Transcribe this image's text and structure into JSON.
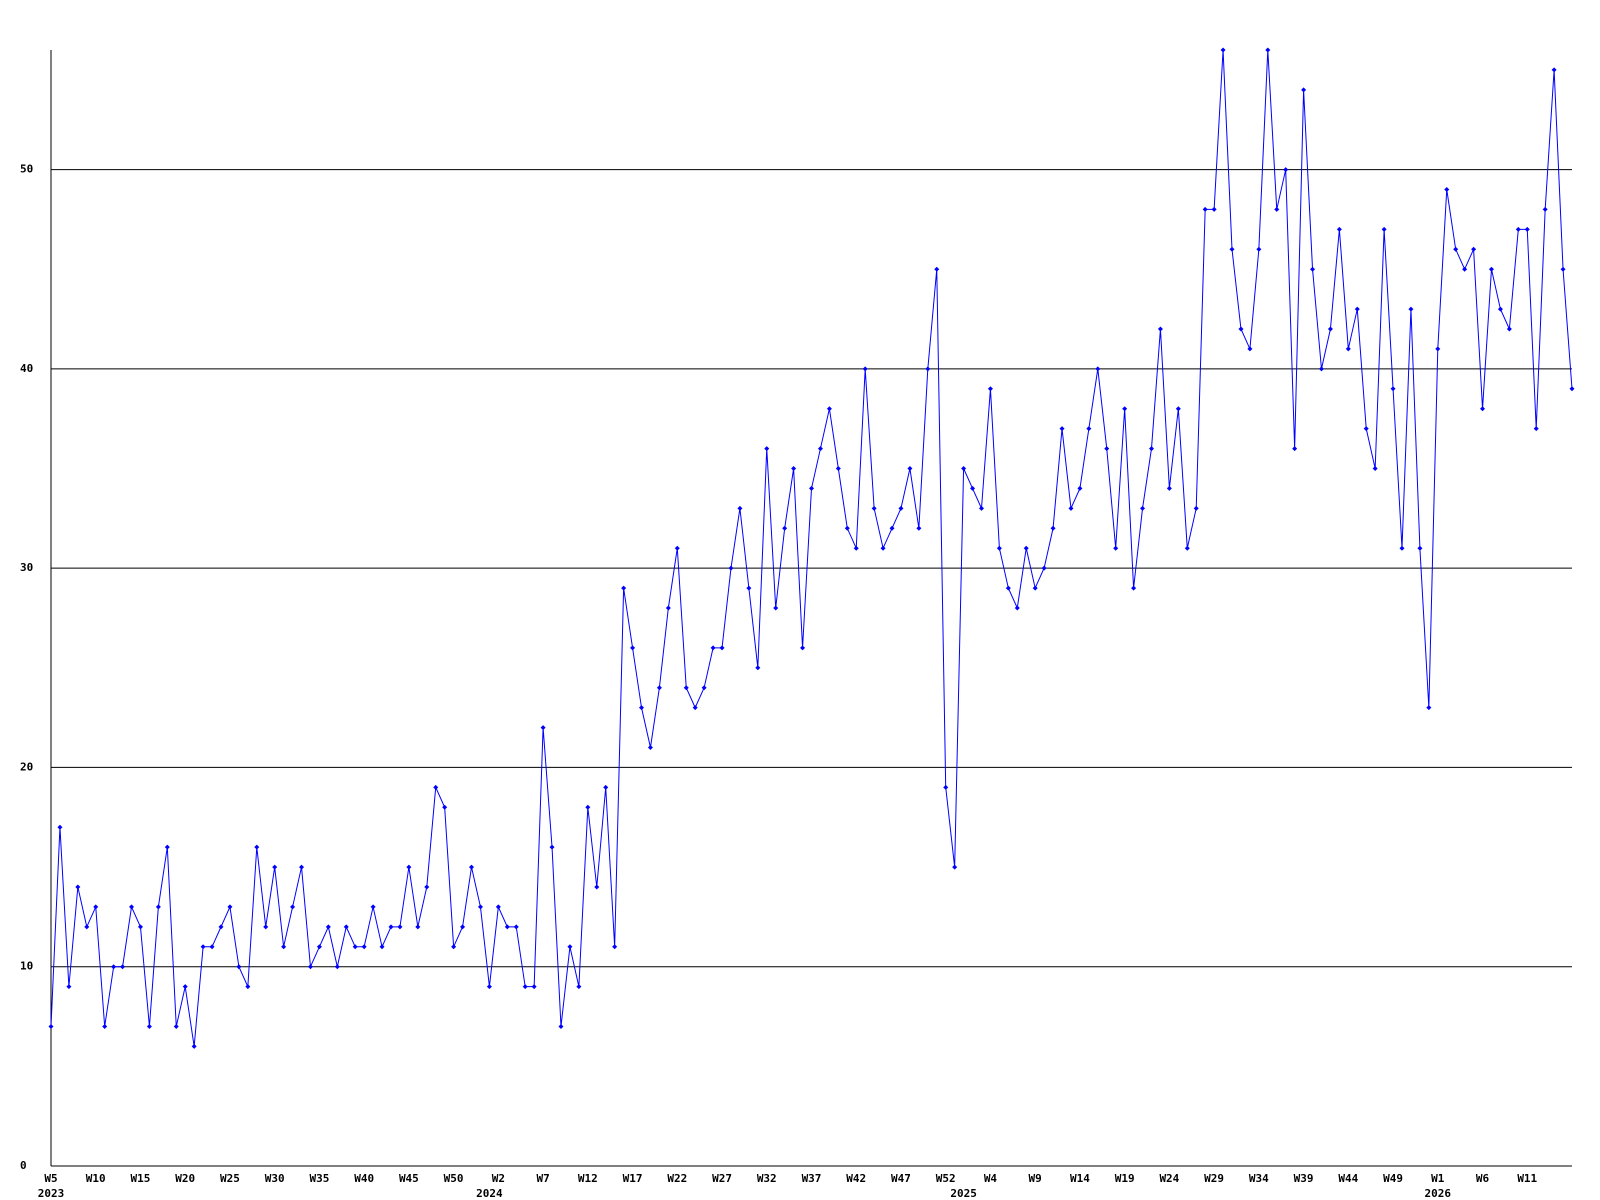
{
  "chart_data": {
    "type": "line",
    "categories": [
      "W5",
      null,
      null,
      null,
      null,
      "W10",
      null,
      null,
      null,
      null,
      "W15",
      null,
      null,
      null,
      null,
      "W20",
      null,
      null,
      null,
      null,
      "W25",
      null,
      null,
      null,
      null,
      "W30",
      null,
      null,
      null,
      null,
      "W35",
      null,
      null,
      null,
      null,
      "W40",
      null,
      null,
      null,
      null,
      "W45",
      null,
      null,
      null,
      null,
      "W50",
      null,
      null,
      null,
      null,
      "W2",
      null,
      null,
      null,
      null,
      "W7",
      null,
      null,
      null,
      null,
      "W12",
      null,
      null,
      null,
      null,
      "W17",
      null,
      null,
      null,
      null,
      "W22",
      null,
      null,
      null,
      null,
      "W27",
      null,
      null,
      null,
      null,
      "W32",
      null,
      null,
      null,
      null,
      "W37",
      null,
      null,
      null,
      null,
      "W42",
      null,
      null,
      null,
      null,
      "W47",
      null,
      null,
      null,
      null,
      "W52",
      null,
      null,
      null,
      null,
      "W4",
      null,
      null,
      null,
      null,
      "W9",
      null,
      null,
      null,
      null,
      "W14",
      null,
      null,
      null,
      null,
      "W19",
      null,
      null,
      null,
      null,
      "W24",
      null,
      null,
      null,
      null,
      "W29",
      null,
      null,
      null,
      null,
      "W34",
      null,
      null,
      null,
      null,
      "W39",
      null,
      null,
      null,
      null,
      "W44",
      null,
      null,
      null,
      null,
      "W49",
      null,
      null,
      null,
      null,
      "W1",
      null,
      null,
      null,
      null,
      "W6",
      null,
      null,
      null,
      null,
      "W11",
      null,
      null,
      null,
      null,
      null
    ],
    "years": [
      "2023",
      null,
      null,
      null,
      null,
      null,
      null,
      null,
      null,
      null,
      null,
      null,
      null,
      null,
      null,
      null,
      null,
      null,
      null,
      null,
      null,
      null,
      null,
      null,
      null,
      null,
      null,
      null,
      null,
      null,
      null,
      null,
      null,
      null,
      null,
      null,
      null,
      null,
      null,
      null,
      null,
      null,
      null,
      null,
      null,
      null,
      null,
      null,
      null,
      "2024",
      null,
      null,
      null,
      null,
      null,
      null,
      null,
      null,
      null,
      null,
      null,
      null,
      null,
      null,
      null,
      null,
      null,
      null,
      null,
      null,
      null,
      null,
      null,
      null,
      null,
      null,
      null,
      null,
      null,
      null,
      null,
      null,
      null,
      null,
      null,
      null,
      null,
      null,
      null,
      null,
      null,
      null,
      null,
      null,
      null,
      null,
      null,
      null,
      null,
      null,
      null,
      null,
      "2025",
      null,
      null,
      null,
      null,
      null,
      null,
      null,
      null,
      null,
      null,
      null,
      null,
      null,
      null,
      null,
      null,
      null,
      null,
      null,
      null,
      null,
      null,
      null,
      null,
      null,
      null,
      null,
      null,
      null,
      null,
      null,
      null,
      null,
      null,
      null,
      null,
      null,
      null,
      null,
      null,
      null,
      null,
      null,
      null,
      null,
      null,
      null,
      null,
      null,
      null,
      null,
      null,
      "2026",
      null,
      null,
      null,
      null,
      null,
      null,
      null,
      null,
      null,
      null,
      null,
      null,
      null,
      null,
      null
    ],
    "series": [
      {
        "color": "#0000ff",
        "values": [
          7,
          17,
          9,
          14,
          12,
          13,
          7,
          10,
          10,
          13,
          12,
          7,
          13,
          16,
          7,
          9,
          6,
          11,
          11,
          12,
          13,
          10,
          9,
          16,
          12,
          15,
          11,
          13,
          15,
          10,
          11,
          12,
          10,
          12,
          11,
          11,
          13,
          11,
          12,
          12,
          15,
          12,
          14,
          19,
          18,
          11,
          12,
          15,
          13,
          9,
          13,
          12,
          12,
          9,
          9,
          22,
          16,
          7,
          11,
          9,
          18,
          14,
          19,
          11,
          29,
          26,
          23,
          21,
          24,
          28,
          31,
          24,
          23,
          24,
          26,
          26,
          30,
          33,
          29,
          25,
          36,
          28,
          32,
          35,
          26,
          34,
          36,
          38,
          35,
          32,
          31,
          40,
          33,
          31,
          32,
          33,
          35,
          32,
          40,
          45,
          19,
          15,
          35,
          34,
          33,
          39,
          31,
          29,
          28,
          31,
          29,
          30,
          32,
          37,
          33,
          34,
          37,
          40,
          36,
          31,
          38,
          29,
          33,
          36,
          42,
          34,
          38,
          31,
          33,
          48,
          48,
          56,
          46,
          42,
          41,
          46,
          56,
          48,
          50,
          36,
          54,
          45,
          40,
          42,
          47,
          41,
          43,
          37,
          35,
          47,
          39,
          31,
          43,
          31,
          23,
          41,
          49,
          46,
          45,
          46,
          38,
          45,
          43,
          42,
          47,
          47,
          37,
          48,
          55,
          45,
          39
        ]
      }
    ],
    "ylim": [
      0,
      56
    ],
    "yticks": [
      0,
      10,
      20,
      30,
      40,
      50
    ],
    "grid": true,
    "grid_color": "#000000"
  }
}
